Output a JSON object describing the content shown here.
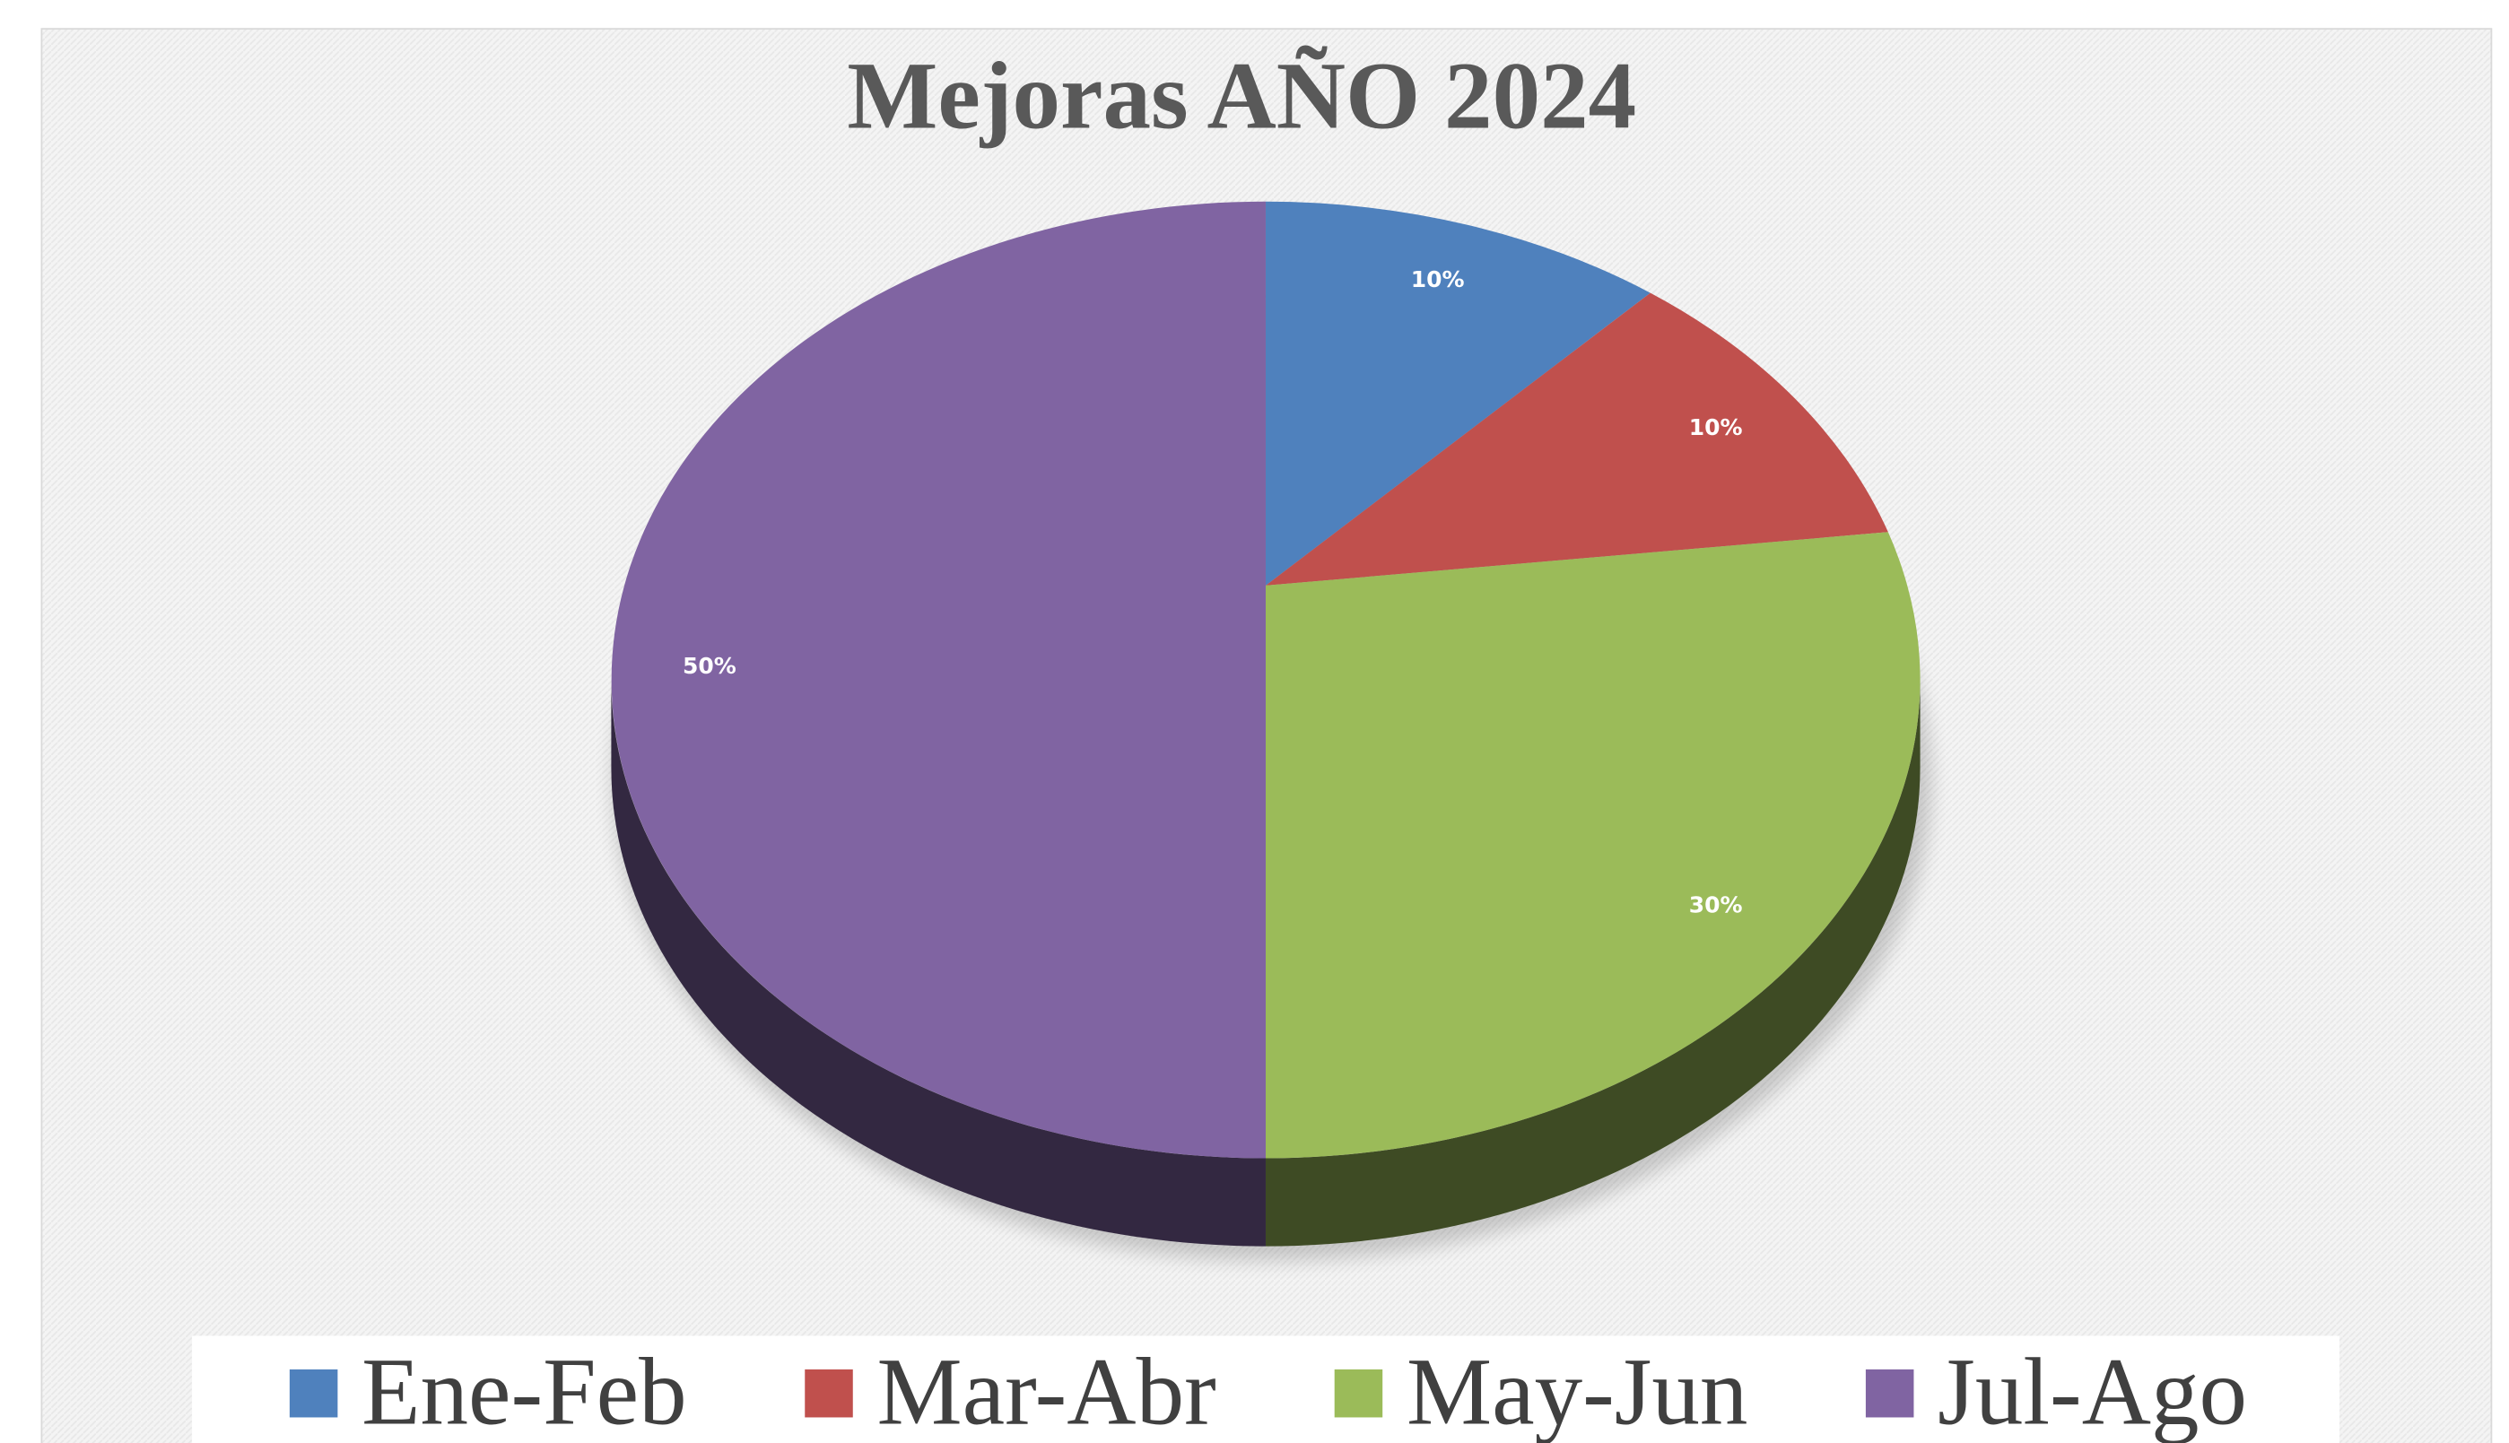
{
  "chart_data": {
    "type": "pie",
    "title": "Mejoras AÑO 2024",
    "categories": [
      "Ene-Feb",
      "Mar-Abr",
      "May-Jun",
      "Jul-Ago"
    ],
    "values": [
      10,
      10,
      30,
      50
    ],
    "value_labels": [
      "10%",
      "10%",
      "30%",
      "50%"
    ],
    "colors": [
      "#4f81bd",
      "#c0504d",
      "#9bbb59",
      "#8064a2"
    ],
    "legend": "bottom"
  }
}
